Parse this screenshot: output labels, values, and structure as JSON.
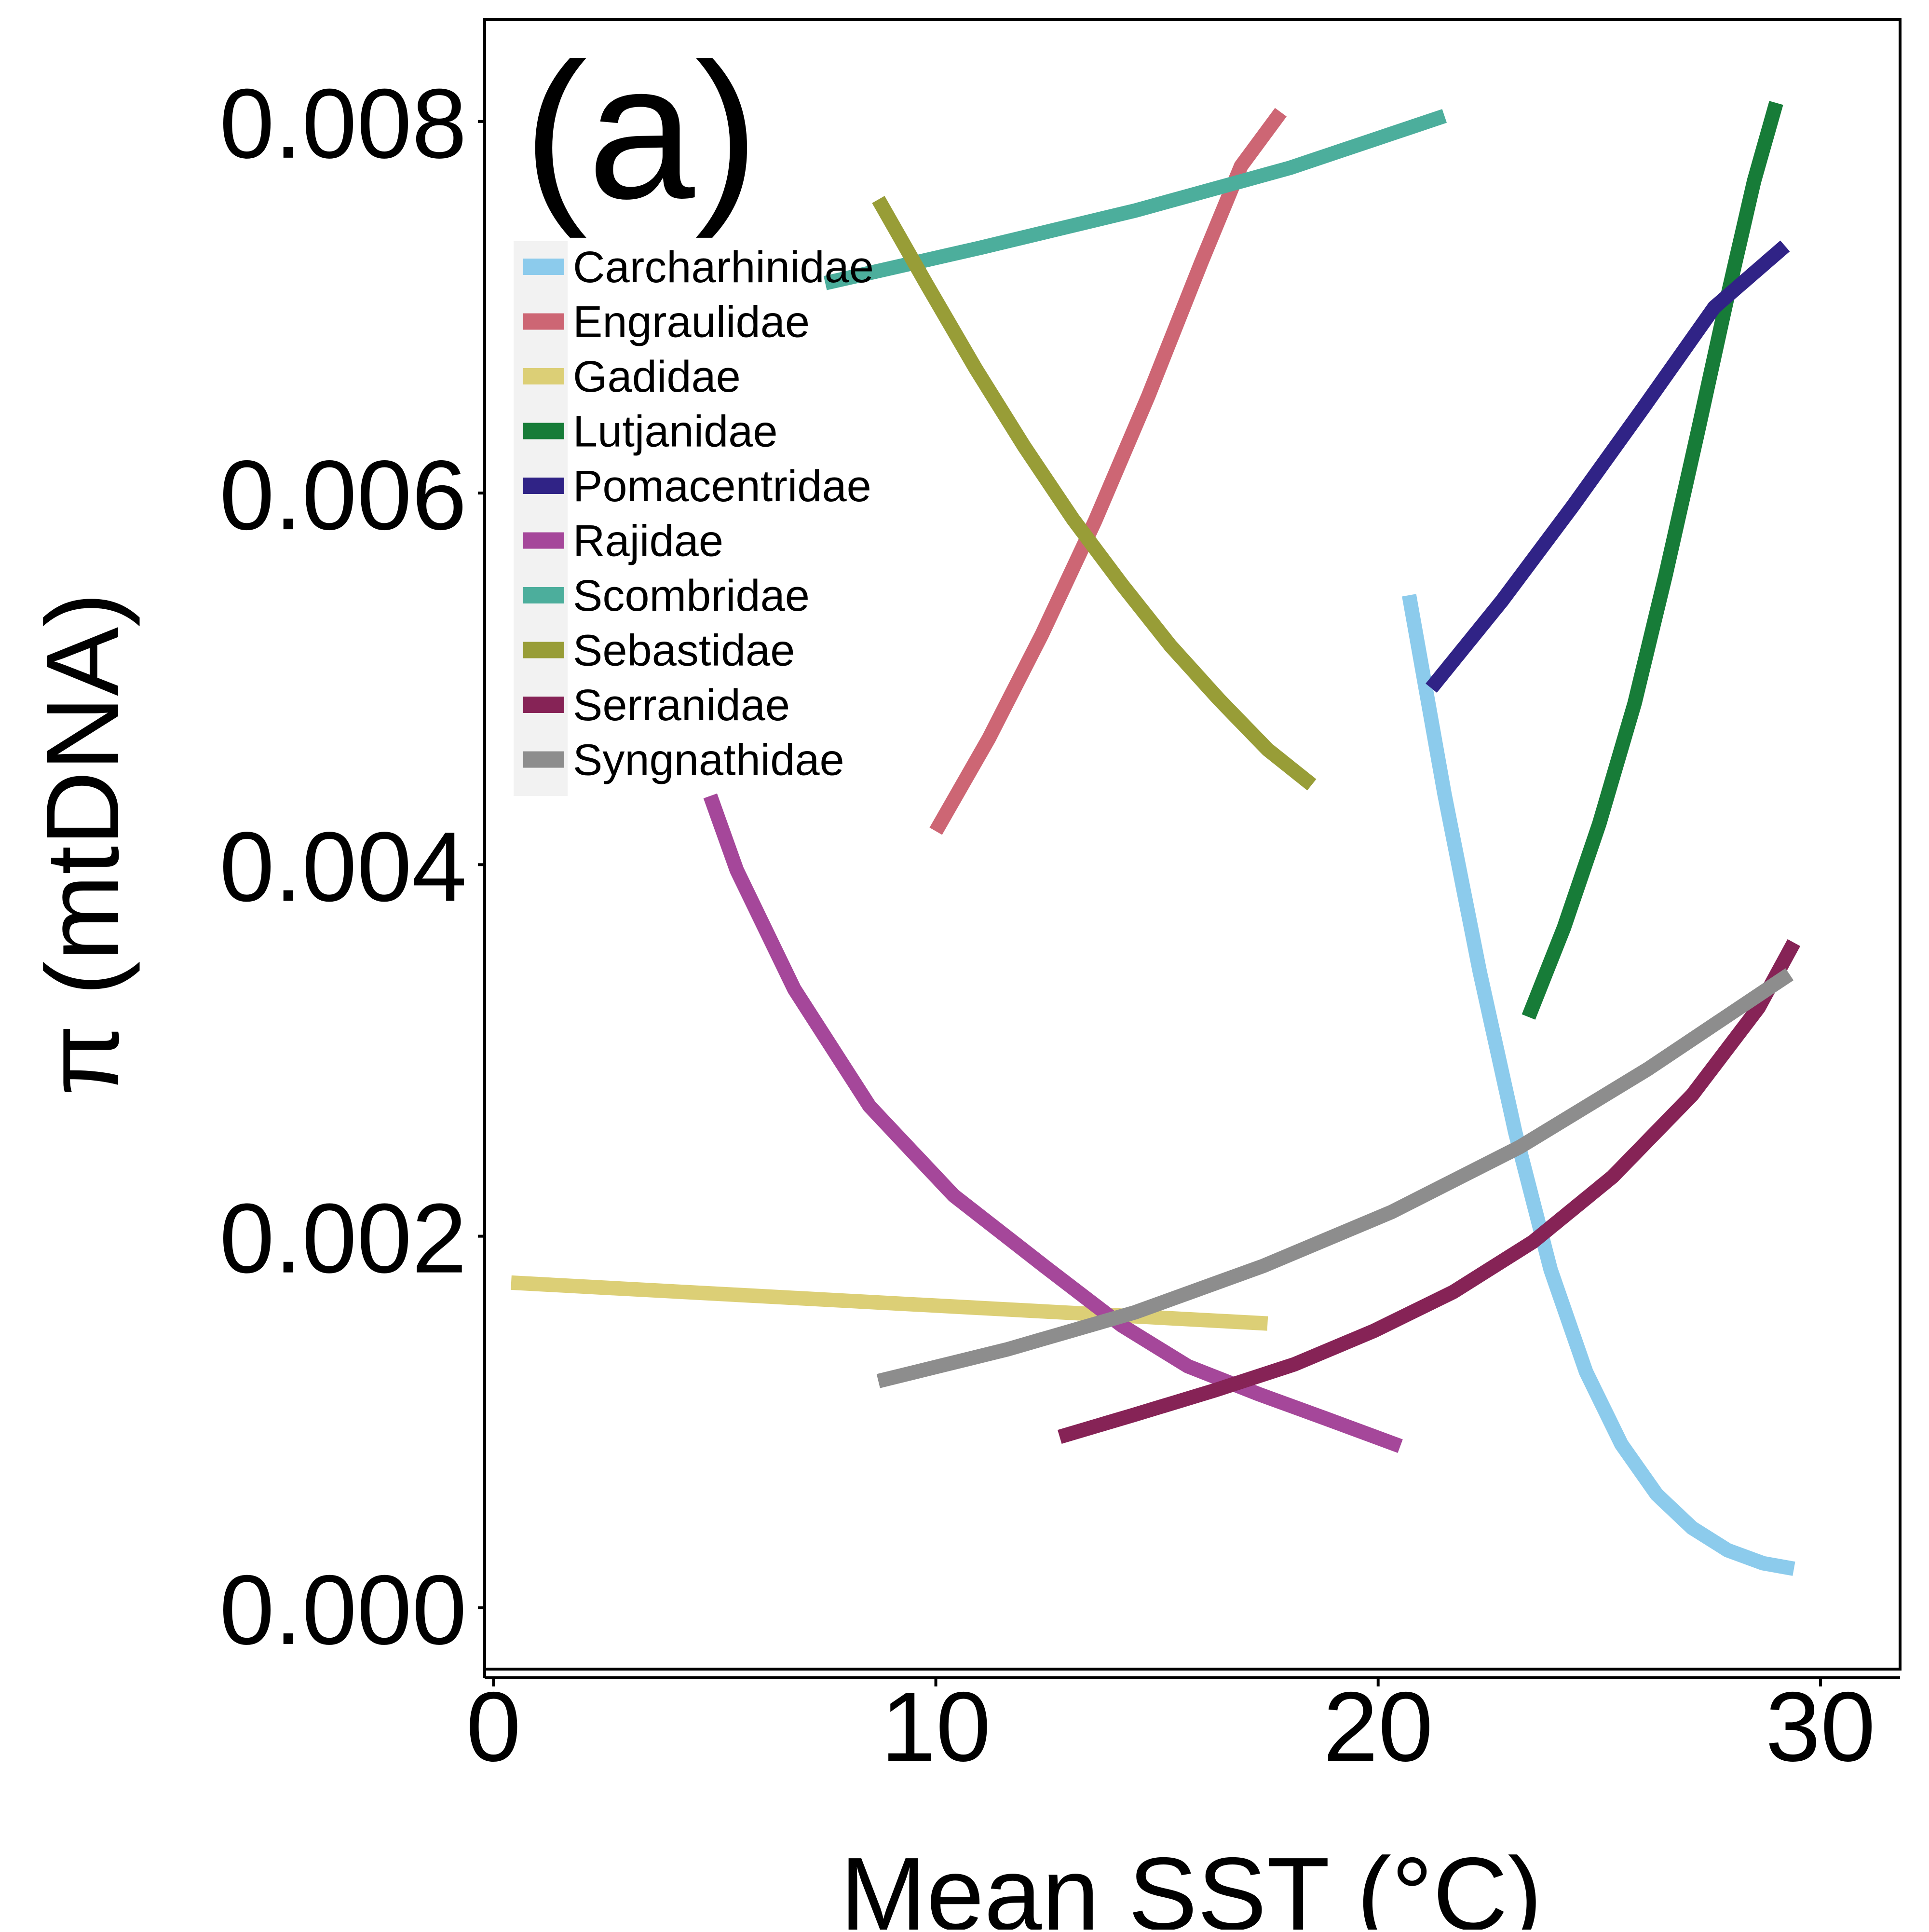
{
  "chart_data": {
    "type": "line",
    "panel_label": "(a)",
    "xlabel": "Mean SST (°C)",
    "ylabel": "π (mtDNA)",
    "xlim": [
      -0.2,
      31.8
    ],
    "ylim": [
      -0.00033,
      0.00855
    ],
    "x_ticks": [
      0,
      10,
      20,
      30
    ],
    "x_tick_labels": [
      "0",
      "10",
      "20",
      "30"
    ],
    "y_ticks": [
      0.0,
      0.002,
      0.004,
      0.006,
      0.008
    ],
    "y_tick_labels": [
      "0.000",
      "0.002",
      "0.004",
      "0.006",
      "0.008"
    ],
    "grid": false,
    "legend_position": "top-left",
    "series": [
      {
        "name": "Carcharhinidae",
        "color": "#8ccbec",
        "x": [
          20.7,
          21.5,
          22.3,
          23.1,
          23.9,
          24.7,
          25.5,
          26.3,
          27.1,
          27.9,
          28.7,
          29.4
        ],
        "y": [
          0.00545,
          0.00438,
          0.00342,
          0.00256,
          0.00182,
          0.00127,
          0.00088,
          0.00061,
          0.00043,
          0.00031,
          0.00024,
          0.00021
        ]
      },
      {
        "name": "Engraulidae",
        "color": "#cd6674",
        "x": [
          10.0,
          11.2,
          12.4,
          13.6,
          14.8,
          16.0,
          16.9,
          17.8
        ],
        "y": [
          0.00418,
          0.00468,
          0.00524,
          0.00585,
          0.00652,
          0.00724,
          0.00776,
          0.00805
        ]
      },
      {
        "name": "Gadidae",
        "color": "#dccf76",
        "x": [
          0.4,
          17.5
        ],
        "y": [
          0.00175,
          0.00153
        ]
      },
      {
        "name": "Lutjanidae",
        "color": "#177c38",
        "x": [
          23.4,
          24.2,
          25.0,
          25.8,
          26.5,
          27.2,
          27.9,
          28.5,
          29.0
        ],
        "y": [
          0.00318,
          0.00366,
          0.00422,
          0.00487,
          0.00556,
          0.0063,
          0.00706,
          0.00768,
          0.0081
        ]
      },
      {
        "name": "Pomacentridae",
        "color": "#302386",
        "x": [
          21.2,
          22.8,
          24.4,
          26.0,
          27.6,
          29.2
        ],
        "y": [
          0.00495,
          0.00542,
          0.00593,
          0.00646,
          0.007,
          0.00733
        ]
      },
      {
        "name": "Rajidae",
        "color": "#a5479a",
        "x": [
          4.9,
          5.5,
          6.8,
          8.5,
          10.4,
          12.5,
          14.2,
          15.7,
          17.3,
          18.8,
          20.5
        ],
        "y": [
          0.00437,
          0.00397,
          0.00333,
          0.0027,
          0.00222,
          0.00183,
          0.00152,
          0.0013,
          0.00115,
          0.00102,
          0.00087
        ]
      },
      {
        "name": "Scombridae",
        "color": "#4cae9c",
        "x": [
          7.5,
          11.0,
          14.5,
          18.0,
          21.5
        ],
        "y": [
          0.00713,
          0.00732,
          0.00752,
          0.00775,
          0.00803
        ]
      },
      {
        "name": "Sebastidae",
        "color": "#989d37",
        "x": [
          8.7,
          9.8,
          10.9,
          12.0,
          13.1,
          14.2,
          15.3,
          16.4,
          17.5,
          18.5
        ],
        "y": [
          0.00758,
          0.00712,
          0.00667,
          0.00625,
          0.00586,
          0.00551,
          0.00518,
          0.00489,
          0.00462,
          0.00443
        ]
      },
      {
        "name": "Serranidae",
        "color": "#862356",
        "x": [
          12.8,
          14.5,
          16.3,
          18.1,
          19.9,
          21.7,
          23.5,
          25.3,
          27.1,
          28.6,
          29.4
        ],
        "y": [
          0.00092,
          0.00104,
          0.00117,
          0.00131,
          0.00149,
          0.0017,
          0.00197,
          0.00232,
          0.00276,
          0.00323,
          0.00358
        ]
      },
      {
        "name": "Syngnathidae",
        "color": "#8d8d8d",
        "x": [
          8.7,
          11.6,
          14.5,
          17.4,
          20.3,
          23.2,
          26.1,
          29.3
        ],
        "y": [
          0.00122,
          0.00139,
          0.00159,
          0.00184,
          0.00213,
          0.00248,
          0.0029,
          0.00341
        ]
      }
    ]
  }
}
